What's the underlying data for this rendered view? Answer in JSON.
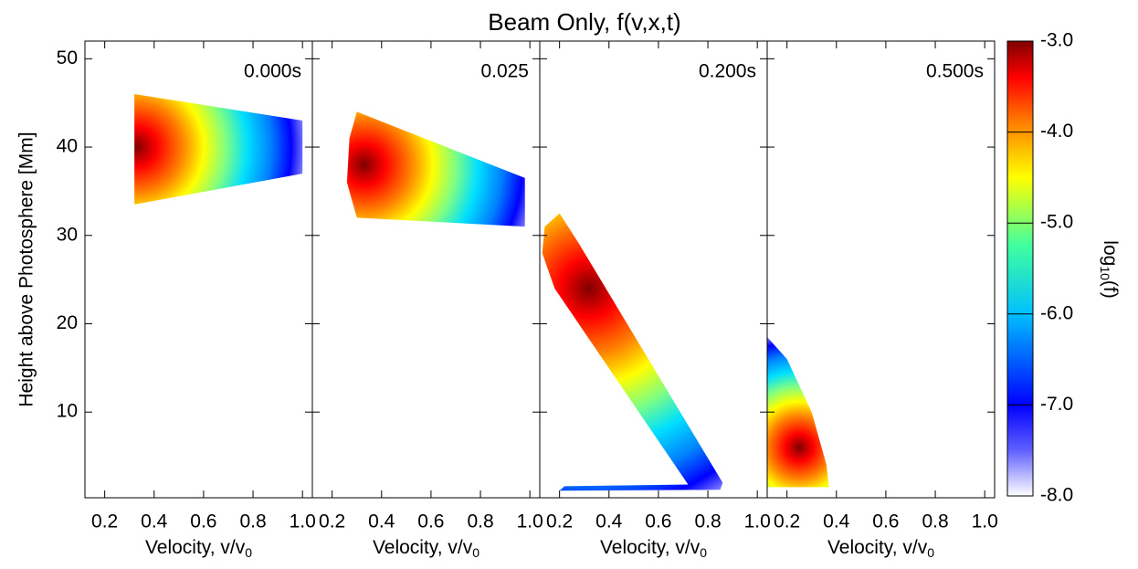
{
  "title": "Beam Only, f(v,x,t)",
  "ylabel": "Height above Photosphere [Mm]",
  "ylim": [
    0.3,
    52
  ],
  "yticks": [
    10,
    20,
    30,
    40,
    50
  ],
  "colorbar": {
    "label": [
      "log",
      "10",
      "(f)"
    ],
    "lim": [
      -8,
      -3
    ],
    "ticks": [
      {
        "value": -3,
        "label": "-3.0"
      },
      {
        "value": -4,
        "label": "-4.0"
      },
      {
        "value": -5,
        "label": "-5.0"
      },
      {
        "value": -6,
        "label": "-6.0"
      },
      {
        "value": -7,
        "label": "-7.0"
      },
      {
        "value": -8,
        "label": "-8.0"
      }
    ]
  },
  "chart_data": [
    {
      "type": "heatmap",
      "title": "0.000s",
      "xlabel": [
        "Velocity, v/v",
        "0"
      ],
      "xlim": [
        0.12,
        1.04
      ],
      "xticks": [
        0.2,
        0.4,
        0.6,
        0.8,
        {
          "value": 1,
          "label": "1.0"
        }
      ],
      "x": [
        0.32,
        1.0,
        1.0,
        0.32
      ],
      "y": [
        46,
        43,
        37,
        33.5
      ],
      "peak": [
        0.33,
        40
      ]
    },
    {
      "type": "heatmap",
      "title": "0.025",
      "xlabel": [
        "Velocity, v/v",
        "0"
      ],
      "xlim": [
        0.12,
        1.04
      ],
      "xticks": [
        0.2,
        0.4,
        0.6,
        0.8,
        {
          "value": 1,
          "label": "1.0"
        }
      ],
      "x": [
        0.3,
        0.98,
        0.98,
        0.3,
        0.26,
        0.27
      ],
      "y": [
        44,
        36.5,
        31,
        32,
        36,
        41
      ],
      "peak": [
        0.33,
        38
      ]
    },
    {
      "type": "heatmap",
      "title": "0.200s",
      "xlabel": [
        "Velocity, v/v",
        "0"
      ],
      "xlim": [
        0.12,
        1.04
      ],
      "xticks": [
        0.2,
        0.4,
        0.6,
        0.8,
        {
          "value": 1,
          "label": "1.0"
        }
      ],
      "x": [
        0.14,
        0.2,
        0.28,
        0.86,
        0.85,
        0.2,
        0.22,
        0.72,
        0.18,
        0.13
      ],
      "y": [
        31,
        32.5,
        29,
        2,
        1.2,
        1.1,
        1.6,
        1.8,
        24,
        28
      ],
      "peak": [
        0.32,
        24
      ]
    },
    {
      "type": "heatmap",
      "title": "0.500s",
      "xlabel": [
        "Velocity, v/v",
        "0"
      ],
      "xlim": [
        0.12,
        1.04
      ],
      "xticks": [
        0.2,
        0.4,
        0.6,
        0.8,
        {
          "value": 1,
          "label": "1.0"
        }
      ],
      "x": [
        0.12,
        0.2,
        0.3,
        0.36,
        0.37,
        0.12
      ],
      "y": [
        18.5,
        16,
        10,
        4,
        1.5,
        1.5
      ],
      "peak": [
        0.25,
        6
      ]
    }
  ]
}
